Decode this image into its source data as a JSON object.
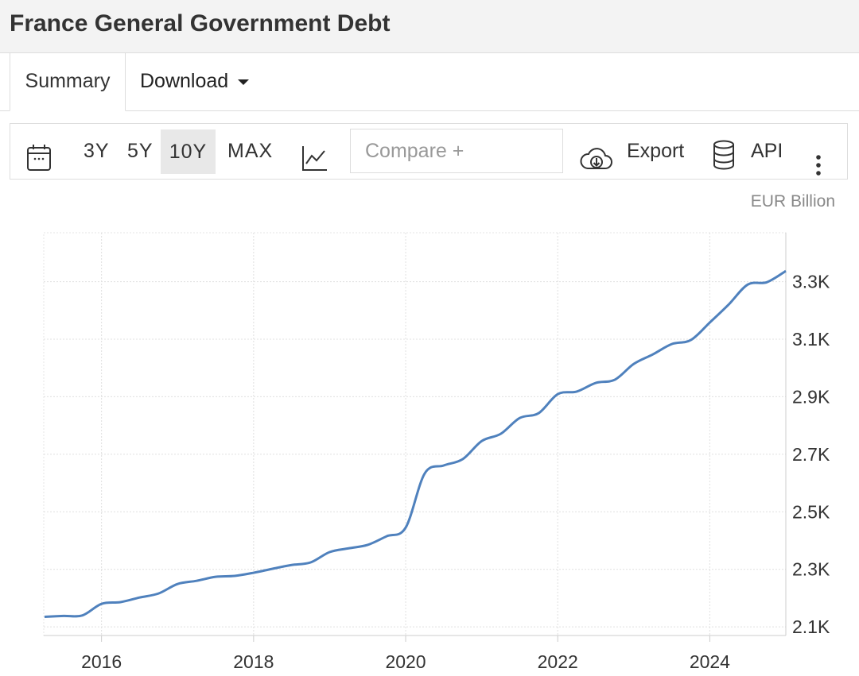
{
  "header": {
    "title": "France General Government Debt"
  },
  "tabs": {
    "summary": "Summary",
    "download": "Download"
  },
  "toolbar": {
    "ranges": [
      "3Y",
      "5Y",
      "10Y",
      "MAX"
    ],
    "selected_range": "10Y",
    "compare_placeholder": "Compare +",
    "export": "Export",
    "api": "API"
  },
  "chart_data": {
    "type": "line",
    "title": "France General Government Debt",
    "unit_label": "EUR Billion",
    "xlabel": "",
    "ylabel": "EUR Billion",
    "x_ticks": [
      "2016",
      "2018",
      "2020",
      "2022",
      "2024"
    ],
    "y_ticks": [
      "2.1K",
      "2.3K",
      "2.5K",
      "2.7K",
      "2.9K",
      "3.1K",
      "3.3K"
    ],
    "y_tick_values": [
      2100,
      2300,
      2500,
      2700,
      2900,
      3100,
      3300
    ],
    "x_tick_values": [
      2016,
      2018,
      2020,
      2022,
      2024
    ],
    "xlim": [
      2015.24,
      2025.0
    ],
    "ylim": [
      2070,
      3470
    ],
    "grid": true,
    "color": "#4f81bd",
    "series": [
      {
        "name": "France General Government Debt",
        "x": [
          2015.25,
          2015.5,
          2015.75,
          2016.0,
          2016.25,
          2016.5,
          2016.75,
          2017.0,
          2017.25,
          2017.5,
          2017.75,
          2018.0,
          2018.25,
          2018.5,
          2018.75,
          2019.0,
          2019.25,
          2019.5,
          2019.75,
          2020.0,
          2020.25,
          2020.5,
          2020.75,
          2021.0,
          2021.25,
          2021.5,
          2021.75,
          2022.0,
          2022.25,
          2022.5,
          2022.75,
          2023.0,
          2023.25,
          2023.5,
          2023.75,
          2024.0,
          2024.25,
          2024.5,
          2024.75,
          2025.0
        ],
        "values": [
          2135,
          2138,
          2140,
          2180,
          2186,
          2202,
          2216,
          2249,
          2260,
          2274,
          2277,
          2288,
          2302,
          2315,
          2324,
          2360,
          2373,
          2385,
          2415,
          2445,
          2633,
          2661,
          2683,
          2746,
          2771,
          2826,
          2843,
          2909,
          2918,
          2948,
          2959,
          3014,
          3047,
          3083,
          3097,
          3158,
          3221,
          3290,
          3298,
          3337
        ]
      }
    ]
  }
}
